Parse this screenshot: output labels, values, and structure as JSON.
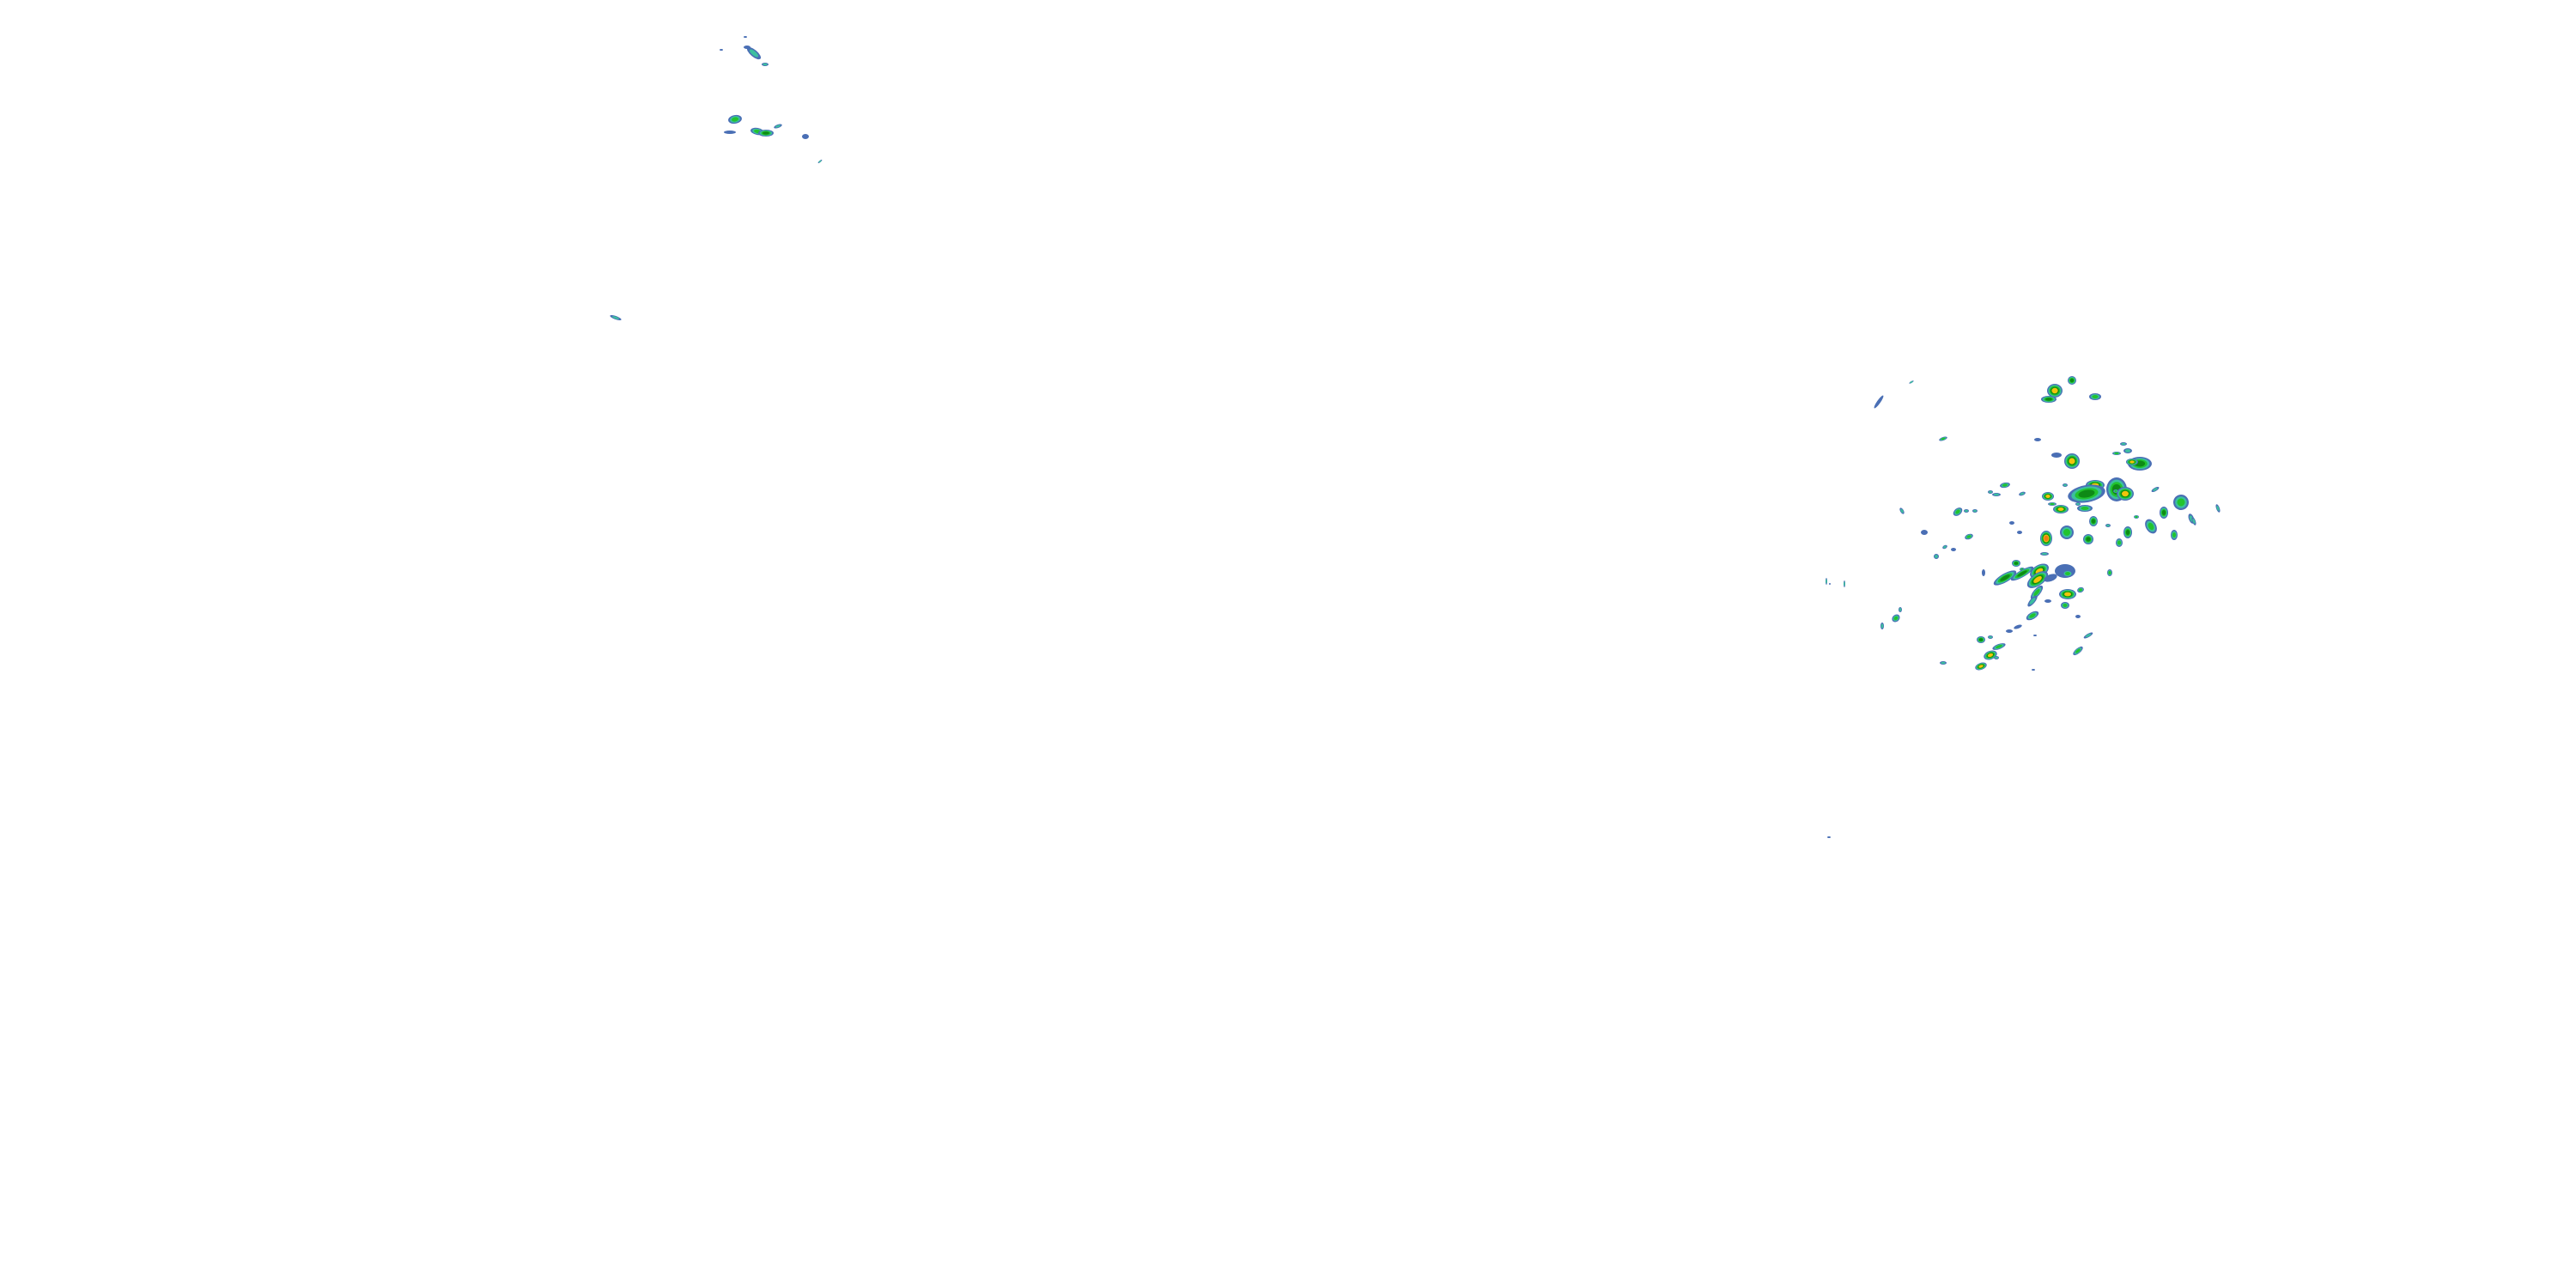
{
  "map": {
    "layer": "radar-reflectivity-overlay",
    "background": "#ffffff",
    "reflectivity_colors": {
      "very_light": "#4a6fb5",
      "light": "#3cbf9f",
      "moderate": "#22c32e",
      "heavy": "#0e8a16",
      "very_heavy": "#f2c40a",
      "intense": "#f07d12",
      "extreme": "#e0301e"
    }
  }
}
